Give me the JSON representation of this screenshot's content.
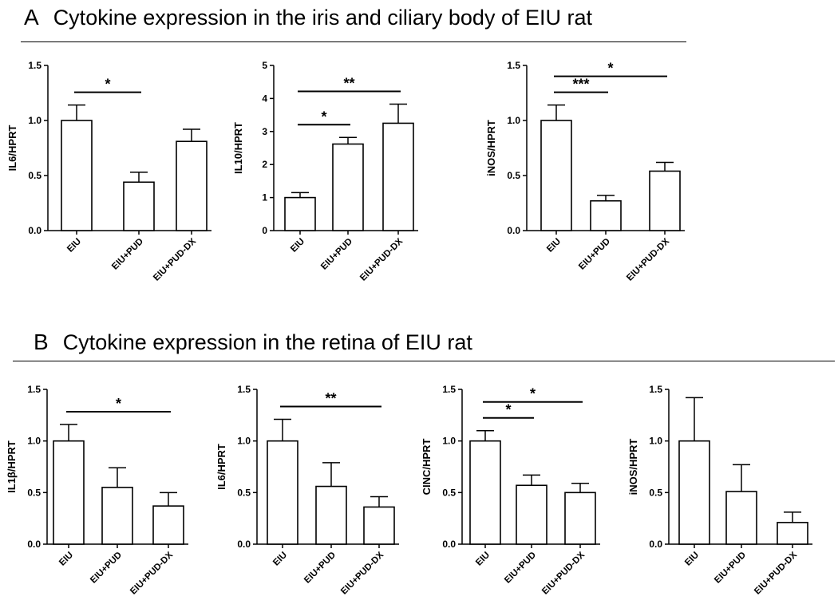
{
  "panels": [
    {
      "letter": "A",
      "title": "Cytokine expression in the iris and ciliary body of EIU rat"
    },
    {
      "letter": "B",
      "title": "Cytokine expression in the retina of EIU rat"
    }
  ],
  "chart_data": [
    {
      "type": "bar",
      "panel": "A",
      "ylabel": "IL6/HPRT",
      "ylim": [
        0,
        1.5
      ],
      "yticks": [
        "0.0",
        "0.5",
        "1.0",
        "1.5"
      ],
      "categories": [
        "EIU",
        "EIU+PUD",
        "EIU+PUD-DX"
      ],
      "values": [
        1.0,
        0.44,
        0.81
      ],
      "errors": [
        0.14,
        0.09,
        0.11
      ],
      "significance": [
        {
          "from": 0,
          "to": 1,
          "label": "*"
        }
      ]
    },
    {
      "type": "bar",
      "panel": "A",
      "ylabel": "IL10/HPRT",
      "ylim": [
        0,
        5
      ],
      "yticks": [
        "0",
        "1",
        "2",
        "3",
        "4",
        "5"
      ],
      "categories": [
        "EIU",
        "EIU+PUD",
        "EIU+PUD-DX"
      ],
      "values": [
        1.0,
        2.62,
        3.25
      ],
      "errors": [
        0.15,
        0.2,
        0.58
      ],
      "significance": [
        {
          "from": 0,
          "to": 1,
          "label": "*"
        },
        {
          "from": 0,
          "to": 2,
          "label": "**"
        }
      ]
    },
    {
      "type": "bar",
      "panel": "A",
      "ylabel": "iNOS/HPRT",
      "ylim": [
        0,
        1.5
      ],
      "yticks": [
        "0.0",
        "0.5",
        "1.0",
        "1.5"
      ],
      "categories": [
        "EIU",
        "EIU+PUD",
        "EIU+PUD-DX"
      ],
      "values": [
        1.0,
        0.27,
        0.54
      ],
      "errors": [
        0.14,
        0.05,
        0.08
      ],
      "significance": [
        {
          "from": 0,
          "to": 1,
          "label": "***"
        },
        {
          "from": 0,
          "to": 2,
          "label": "*"
        }
      ]
    },
    {
      "type": "bar",
      "panel": "B",
      "ylabel": "IL1β/HPRT",
      "ylim": [
        0,
        1.5
      ],
      "yticks": [
        "0.0",
        "0.5",
        "1.0",
        "1.5"
      ],
      "categories": [
        "EIU",
        "EIU+PUD",
        "EIU+PUD-DX"
      ],
      "values": [
        1.0,
        0.55,
        0.37
      ],
      "errors": [
        0.16,
        0.19,
        0.13
      ],
      "significance": [
        {
          "from": 0,
          "to": 2,
          "label": "*"
        }
      ]
    },
    {
      "type": "bar",
      "panel": "B",
      "ylabel": "IL6/HPRT",
      "ylim": [
        0,
        1.5
      ],
      "yticks": [
        "0.0",
        "0.5",
        "1.0",
        "1.5"
      ],
      "categories": [
        "EIU",
        "EIU+PUD",
        "EIU+PUD-DX"
      ],
      "values": [
        1.0,
        0.56,
        0.36
      ],
      "errors": [
        0.21,
        0.23,
        0.1
      ],
      "significance": [
        {
          "from": 0,
          "to": 2,
          "label": "**"
        }
      ]
    },
    {
      "type": "bar",
      "panel": "B",
      "ylabel": "CINC/HPRT",
      "ylim": [
        0,
        1.5
      ],
      "yticks": [
        "0.0",
        "0.5",
        "1.0",
        "1.5"
      ],
      "categories": [
        "EIU",
        "EIU+PUD",
        "EIU+PUD-DX"
      ],
      "values": [
        1.0,
        0.57,
        0.5
      ],
      "errors": [
        0.1,
        0.1,
        0.09
      ],
      "significance": [
        {
          "from": 0,
          "to": 1,
          "label": "*"
        },
        {
          "from": 0,
          "to": 2,
          "label": "*"
        }
      ]
    },
    {
      "type": "bar",
      "panel": "B",
      "ylabel": "iNOS/HPRT",
      "ylim": [
        0,
        1.5
      ],
      "yticks": [
        "0.0",
        "0.5",
        "1.0",
        "1.5"
      ],
      "categories": [
        "EIU",
        "EIU+PUD",
        "EIU+PUD-DX"
      ],
      "values": [
        1.0,
        0.51,
        0.21
      ],
      "errors": [
        0.42,
        0.26,
        0.1
      ],
      "significance": []
    }
  ]
}
